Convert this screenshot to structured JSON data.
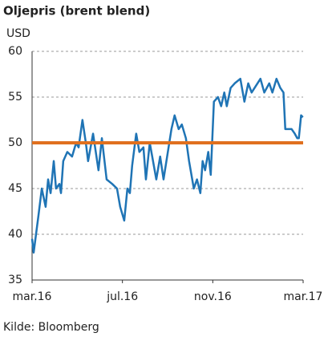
{
  "chart_data": {
    "type": "line",
    "title": "Oljepris (brent blend)",
    "y_label": "USD",
    "source": "Kilde: Bloomberg",
    "x": [
      0,
      0.07,
      0.28,
      0.43,
      0.6,
      0.71,
      0.82,
      0.96,
      1.06,
      1.21,
      1.28,
      1.38,
      1.56,
      1.77,
      1.95,
      2.06,
      2.23,
      2.38,
      2.48,
      2.7,
      2.94,
      3.09,
      3.3,
      3.55,
      3.76,
      3.9,
      4.08,
      4.22,
      4.33,
      4.43,
      4.61,
      4.75,
      4.93,
      5.04,
      5.21,
      5.5,
      5.67,
      5.82,
      6.17,
      6.31,
      6.49,
      6.63,
      6.81,
      6.95,
      7.16,
      7.3,
      7.45,
      7.55,
      7.66,
      7.8,
      7.91,
      8.05,
      8.23,
      8.37,
      8.51,
      8.62,
      8.79,
      8.97,
      9.22,
      9.4,
      9.57,
      9.72,
      10.11,
      10.28,
      10.5,
      10.64,
      10.82,
      10.99,
      11.13,
      11.21,
      11.35,
      11.49,
      11.63,
      11.74,
      11.81,
      11.91,
      11.99
    ],
    "series": [
      {
        "name": "Brent blend",
        "color": "#1f74b5",
        "values": [
          39.5,
          38,
          42,
          45,
          43,
          46,
          44.5,
          48,
          45,
          45.5,
          44.5,
          48,
          49,
          48.5,
          50,
          49.5,
          52.5,
          50,
          48,
          51,
          47,
          50.5,
          46,
          45.5,
          45,
          43,
          41.5,
          45,
          44.5,
          47.5,
          51,
          49,
          49.5,
          46,
          50,
          46,
          48.5,
          46,
          51.5,
          53,
          51.5,
          52,
          50.5,
          48,
          45,
          46,
          44.5,
          48,
          47,
          49,
          46.5,
          54.5,
          55,
          54,
          55.5,
          54,
          56,
          56.5,
          57,
          54.5,
          56.5,
          55.5,
          57,
          55.5,
          56.5,
          55.5,
          57,
          56,
          55.5,
          51.5,
          51.5,
          51.5,
          51,
          50.5,
          50.5,
          53,
          52.8
        ]
      }
    ],
    "reference_line": {
      "value": 50,
      "color": "#e0701f"
    },
    "xlim": [
      0,
      12
    ],
    "xticks": [
      {
        "value": 0,
        "label": "mar.16"
      },
      {
        "value": 4,
        "label": "jul.16"
      },
      {
        "value": 8,
        "label": "nov.16"
      },
      {
        "value": 12,
        "label": "mar.17"
      }
    ],
    "ylim": [
      35,
      60
    ],
    "yticks": [
      35,
      40,
      45,
      50,
      55,
      60
    ],
    "grid": true
  }
}
